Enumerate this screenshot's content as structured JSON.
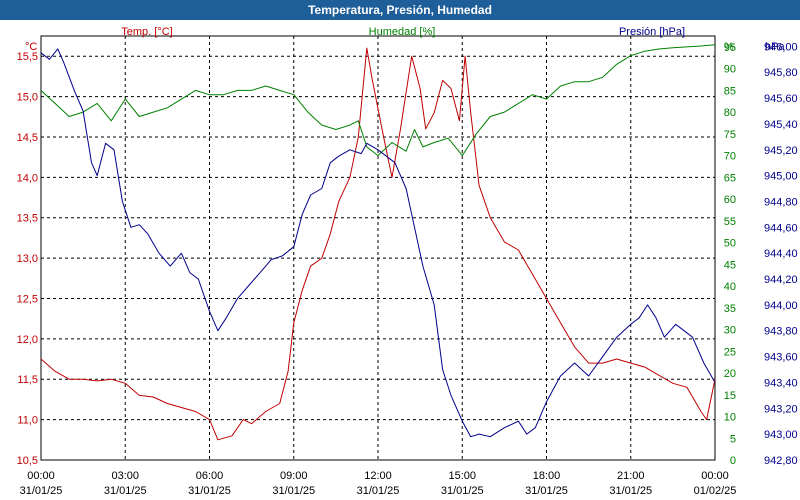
{
  "window": {
    "title": "Temperatura, Presión, Humedad"
  },
  "chart_data": {
    "type": "line",
    "title": "Temperatura, Presión, Humedad",
    "grid": true,
    "x_start": "00:00 31/01/25",
    "x_end": "00:00 01/02/25",
    "x_ticks": [
      {
        "h": 0,
        "time": "00:00",
        "date": "31/01/25"
      },
      {
        "h": 3,
        "time": "03:00",
        "date": "31/01/25"
      },
      {
        "h": 6,
        "time": "06:00",
        "date": "31/01/25"
      },
      {
        "h": 9,
        "time": "09:00",
        "date": "31/01/25"
      },
      {
        "h": 12,
        "time": "12:00",
        "date": "31/01/25"
      },
      {
        "h": 15,
        "time": "15:00",
        "date": "31/01/25"
      },
      {
        "h": 18,
        "time": "18:00",
        "date": "31/01/25"
      },
      {
        "h": 21,
        "time": "21:00",
        "date": "31/01/25"
      },
      {
        "h": 24,
        "time": "00:00",
        "date": "01/02/25"
      }
    ],
    "axes": {
      "temp": {
        "label": "Temp. [°C]",
        "unit": "°C",
        "color": "#c00000",
        "range": [
          10.5,
          15.75
        ],
        "ticks": [
          "15,5",
          "15,0",
          "14,5",
          "14,0",
          "13,5",
          "13,0",
          "12,5",
          "12,0",
          "11,5",
          "11,0",
          "10,5"
        ],
        "tick_values": [
          15.5,
          15.0,
          14.5,
          14.0,
          13.5,
          13.0,
          12.5,
          12.0,
          11.5,
          11.0,
          10.5
        ]
      },
      "hum": {
        "label": "Humedad [%]",
        "unit": "%",
        "color": "#008000",
        "range": [
          0,
          97.5
        ],
        "ticks": [
          "95",
          "90",
          "85",
          "80",
          "75",
          "70",
          "65",
          "60",
          "55",
          "50",
          "45",
          "40",
          "35",
          "30",
          "25",
          "20",
          "15",
          "10",
          "5",
          "0"
        ],
        "tick_values": [
          95,
          90,
          85,
          80,
          75,
          70,
          65,
          60,
          55,
          50,
          45,
          40,
          35,
          30,
          25,
          20,
          15,
          10,
          5,
          0
        ]
      },
      "pres": {
        "label": "Presión [hPa]",
        "unit": "hPa",
        "color": "#00008b",
        "range": [
          942.8,
          946.08
        ],
        "ticks": [
          "946,00",
          "945,80",
          "945,60",
          "945,40",
          "945,20",
          "945,00",
          "944,80",
          "944,60",
          "944,40",
          "944,20",
          "944,00",
          "943,80",
          "943,60",
          "943,40",
          "943,20",
          "943,00",
          "942,80"
        ],
        "tick_values": [
          946.0,
          945.8,
          945.6,
          945.4,
          945.2,
          945.0,
          944.8,
          944.6,
          944.4,
          944.2,
          944.0,
          943.8,
          943.6,
          943.4,
          943.2,
          943.0,
          942.8
        ]
      }
    },
    "series": [
      {
        "name": "Temp. [°C]",
        "axis": "temp",
        "color": "#c00000",
        "points": [
          [
            0,
            11.75
          ],
          [
            0.5,
            11.6
          ],
          [
            1,
            11.5
          ],
          [
            1.5,
            11.5
          ],
          [
            2,
            11.48
          ],
          [
            2.5,
            11.5
          ],
          [
            3,
            11.45
          ],
          [
            3.5,
            11.3
          ],
          [
            4,
            11.28
          ],
          [
            4.5,
            11.2
          ],
          [
            5,
            11.15
          ],
          [
            5.5,
            11.1
          ],
          [
            6,
            11.0
          ],
          [
            6.3,
            10.75
          ],
          [
            6.8,
            10.8
          ],
          [
            7.2,
            11.0
          ],
          [
            7.5,
            10.95
          ],
          [
            8,
            11.1
          ],
          [
            8.5,
            11.2
          ],
          [
            8.8,
            11.6
          ],
          [
            9,
            12.2
          ],
          [
            9.3,
            12.6
          ],
          [
            9.6,
            12.9
          ],
          [
            10,
            13.0
          ],
          [
            10.3,
            13.3
          ],
          [
            10.6,
            13.7
          ],
          [
            11,
            14.0
          ],
          [
            11.3,
            14.5
          ],
          [
            11.6,
            15.6
          ],
          [
            11.8,
            15.2
          ],
          [
            12.2,
            14.5
          ],
          [
            12.5,
            14.0
          ],
          [
            12.8,
            14.6
          ],
          [
            13.2,
            15.5
          ],
          [
            13.5,
            15.1
          ],
          [
            13.7,
            14.6
          ],
          [
            14,
            14.8
          ],
          [
            14.3,
            15.2
          ],
          [
            14.6,
            15.1
          ],
          [
            14.9,
            14.7
          ],
          [
            15.1,
            15.5
          ],
          [
            15.3,
            14.8
          ],
          [
            15.6,
            13.9
          ],
          [
            16,
            13.5
          ],
          [
            16.5,
            13.2
          ],
          [
            17,
            13.1
          ],
          [
            17.5,
            12.8
          ],
          [
            18,
            12.5
          ],
          [
            18.5,
            12.2
          ],
          [
            19,
            11.9
          ],
          [
            19.5,
            11.7
          ],
          [
            20,
            11.7
          ],
          [
            20.5,
            11.75
          ],
          [
            21,
            11.7
          ],
          [
            21.5,
            11.65
          ],
          [
            22,
            11.55
          ],
          [
            22.5,
            11.45
          ],
          [
            23,
            11.4
          ],
          [
            23.5,
            11.1
          ],
          [
            23.7,
            11.0
          ],
          [
            24,
            11.5
          ]
        ]
      },
      {
        "name": "Humedad [%]",
        "axis": "hum",
        "color": "#008000",
        "points": [
          [
            0,
            85
          ],
          [
            0.5,
            82
          ],
          [
            1,
            79
          ],
          [
            1.5,
            80
          ],
          [
            2,
            82
          ],
          [
            2.5,
            78
          ],
          [
            3,
            83
          ],
          [
            3.5,
            79
          ],
          [
            4,
            80
          ],
          [
            4.5,
            81
          ],
          [
            5,
            83
          ],
          [
            5.5,
            85
          ],
          [
            6,
            84
          ],
          [
            6.5,
            84
          ],
          [
            7,
            85
          ],
          [
            7.5,
            85
          ],
          [
            8,
            86
          ],
          [
            8.5,
            85
          ],
          [
            9,
            84
          ],
          [
            9.5,
            80
          ],
          [
            10,
            77
          ],
          [
            10.5,
            76
          ],
          [
            11,
            77
          ],
          [
            11.3,
            78
          ],
          [
            11.6,
            72
          ],
          [
            12,
            70
          ],
          [
            12.5,
            73
          ],
          [
            13,
            71
          ],
          [
            13.3,
            76
          ],
          [
            13.6,
            72
          ],
          [
            14,
            73
          ],
          [
            14.5,
            74
          ],
          [
            15,
            70
          ],
          [
            15.5,
            75
          ],
          [
            16,
            79
          ],
          [
            16.5,
            80
          ],
          [
            17,
            82
          ],
          [
            17.5,
            84
          ],
          [
            18,
            83
          ],
          [
            18.5,
            86
          ],
          [
            19,
            87
          ],
          [
            19.5,
            87
          ],
          [
            20,
            88
          ],
          [
            20.5,
            91
          ],
          [
            21,
            93
          ],
          [
            21.5,
            94
          ],
          [
            22,
            94.5
          ],
          [
            22.5,
            94.8
          ],
          [
            23,
            95
          ],
          [
            23.5,
            95.2
          ],
          [
            24,
            95.5
          ]
        ]
      },
      {
        "name": "Presión [hPa]",
        "axis": "pres",
        "color": "#00008b",
        "points": [
          [
            0,
            945.95
          ],
          [
            0.3,
            945.9
          ],
          [
            0.6,
            945.98
          ],
          [
            0.8,
            945.88
          ],
          [
            1.2,
            945.65
          ],
          [
            1.5,
            945.5
          ],
          [
            1.8,
            945.1
          ],
          [
            2,
            945.0
          ],
          [
            2.3,
            945.25
          ],
          [
            2.6,
            945.2
          ],
          [
            2.9,
            944.8
          ],
          [
            3.2,
            944.6
          ],
          [
            3.5,
            944.62
          ],
          [
            3.8,
            944.55
          ],
          [
            4.2,
            944.4
          ],
          [
            4.6,
            944.3
          ],
          [
            5,
            944.4
          ],
          [
            5.3,
            944.25
          ],
          [
            5.6,
            944.2
          ],
          [
            6,
            943.95
          ],
          [
            6.3,
            943.8
          ],
          [
            6.6,
            943.9
          ],
          [
            7,
            944.05
          ],
          [
            7.4,
            944.15
          ],
          [
            7.8,
            944.25
          ],
          [
            8.2,
            944.35
          ],
          [
            8.6,
            944.38
          ],
          [
            9,
            944.45
          ],
          [
            9.3,
            944.7
          ],
          [
            9.6,
            944.85
          ],
          [
            10,
            944.9
          ],
          [
            10.3,
            945.1
          ],
          [
            10.6,
            945.15
          ],
          [
            11,
            945.2
          ],
          [
            11.4,
            945.17
          ],
          [
            11.6,
            945.25
          ],
          [
            12,
            945.2
          ],
          [
            12.3,
            945.15
          ],
          [
            12.6,
            945.1
          ],
          [
            13,
            944.9
          ],
          [
            13.3,
            944.6
          ],
          [
            13.6,
            944.3
          ],
          [
            14,
            944.0
          ],
          [
            14.3,
            943.5
          ],
          [
            14.6,
            943.3
          ],
          [
            15,
            943.1
          ],
          [
            15.3,
            942.98
          ],
          [
            15.6,
            943.0
          ],
          [
            16,
            942.98
          ],
          [
            16.5,
            943.05
          ],
          [
            17,
            943.1
          ],
          [
            17.3,
            943.0
          ],
          [
            17.6,
            943.05
          ],
          [
            18,
            943.25
          ],
          [
            18.5,
            943.45
          ],
          [
            19,
            943.55
          ],
          [
            19.5,
            943.45
          ],
          [
            20,
            943.6
          ],
          [
            20.5,
            943.75
          ],
          [
            21,
            943.85
          ],
          [
            21.3,
            943.9
          ],
          [
            21.6,
            944.0
          ],
          [
            21.9,
            943.9
          ],
          [
            22.2,
            943.75
          ],
          [
            22.6,
            943.85
          ],
          [
            22.9,
            943.8
          ],
          [
            23.2,
            943.75
          ],
          [
            23.6,
            943.55
          ],
          [
            24,
            943.4
          ]
        ]
      }
    ]
  }
}
